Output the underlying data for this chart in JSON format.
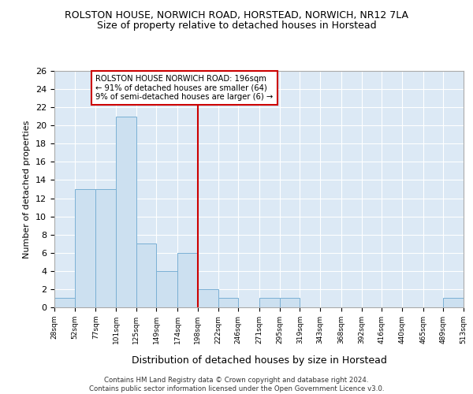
{
  "title": "ROLSTON HOUSE, NORWICH ROAD, HORSTEAD, NORWICH, NR12 7LA",
  "subtitle": "Size of property relative to detached houses in Horstead",
  "xlabel": "Distribution of detached houses by size in Horstead",
  "ylabel": "Number of detached properties",
  "bins": [
    "28sqm",
    "52sqm",
    "77sqm",
    "101sqm",
    "125sqm",
    "149sqm",
    "174sqm",
    "198sqm",
    "222sqm",
    "246sqm",
    "271sqm",
    "295sqm",
    "319sqm",
    "343sqm",
    "368sqm",
    "392sqm",
    "416sqm",
    "440sqm",
    "465sqm",
    "489sqm",
    "513sqm"
  ],
  "bin_edges": [
    28,
    52,
    77,
    101,
    125,
    149,
    174,
    198,
    222,
    246,
    271,
    295,
    319,
    343,
    368,
    392,
    416,
    440,
    465,
    489,
    513
  ],
  "values": [
    1,
    13,
    13,
    21,
    7,
    4,
    6,
    2,
    1,
    0,
    1,
    1,
    0,
    0,
    0,
    0,
    0,
    0,
    0,
    1
  ],
  "bar_color": "#cce0f0",
  "bar_edgecolor": "#7ab0d4",
  "vline_x": 198,
  "vline_color": "#cc0000",
  "annotation_line1": "ROLSTON HOUSE NORWICH ROAD: 196sqm",
  "annotation_line2": "← 91% of detached houses are smaller (64)",
  "annotation_line3": "9% of semi-detached houses are larger (6) →",
  "annotation_box_edgecolor": "#cc0000",
  "annotation_box_facecolor": "#ffffff",
  "ylim": [
    0,
    26
  ],
  "yticks": [
    0,
    2,
    4,
    6,
    8,
    10,
    12,
    14,
    16,
    18,
    20,
    22,
    24,
    26
  ],
  "footer_text": "Contains HM Land Registry data © Crown copyright and database right 2024.\nContains public sector information licensed under the Open Government Licence v3.0.",
  "title_fontsize": 9,
  "subtitle_fontsize": 9,
  "ylabel_fontsize": 8,
  "xlabel_fontsize": 9,
  "grid_color": "#ffffff",
  "ax_background": "#dce9f5",
  "fig_background": "#ffffff"
}
